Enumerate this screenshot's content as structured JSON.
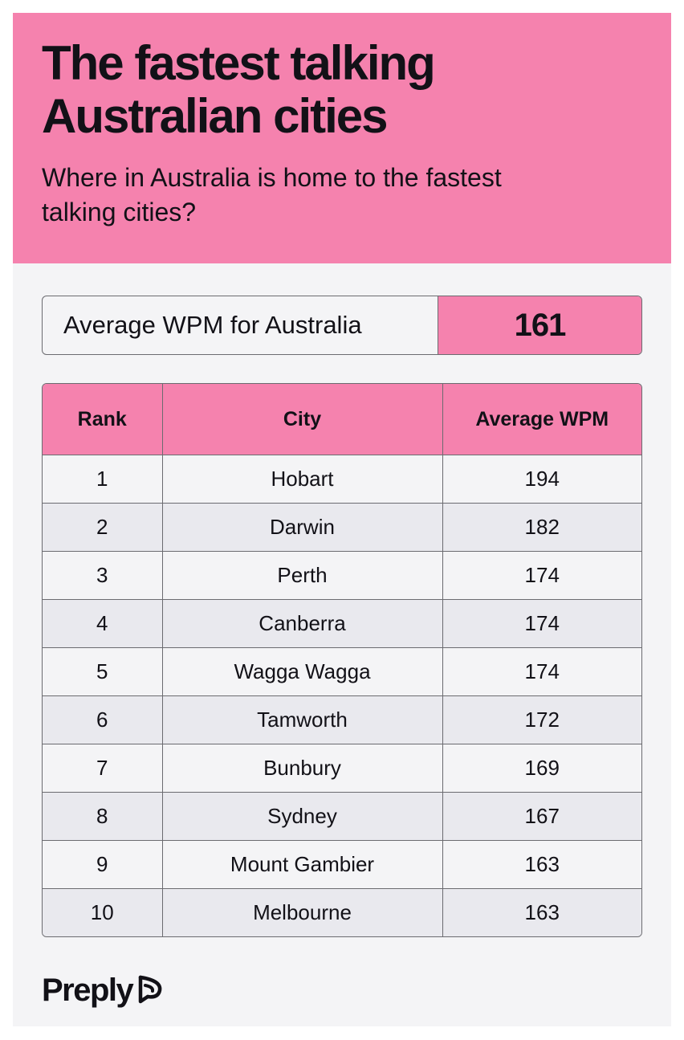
{
  "theme": {
    "accent": "#f582ae"
  },
  "header": {
    "title_lines": [
      "The fastest talking",
      "Australian cities"
    ],
    "subtitle_lines": [
      "Where in Australia is home to the fastest",
      "talking cities?"
    ]
  },
  "summary": {
    "label": "Average WPM for Australia",
    "value": "161"
  },
  "logo": {
    "text": "Preply",
    "icon": "preply-arrow-icon"
  },
  "chart_data": {
    "type": "table",
    "columns": [
      "Rank",
      "City",
      "Average WPM"
    ],
    "rows": [
      [
        "1",
        "Hobart",
        "194"
      ],
      [
        "2",
        "Darwin",
        "182"
      ],
      [
        "3",
        "Perth",
        "174"
      ],
      [
        "4",
        "Canberra",
        "174"
      ],
      [
        "5",
        "Wagga Wagga",
        "174"
      ],
      [
        "6",
        "Tamworth",
        "172"
      ],
      [
        "7",
        "Bunbury",
        "169"
      ],
      [
        "8",
        "Sydney",
        "167"
      ],
      [
        "9",
        "Mount Gambier",
        "163"
      ],
      [
        "10",
        "Melbourne",
        "163"
      ]
    ]
  }
}
